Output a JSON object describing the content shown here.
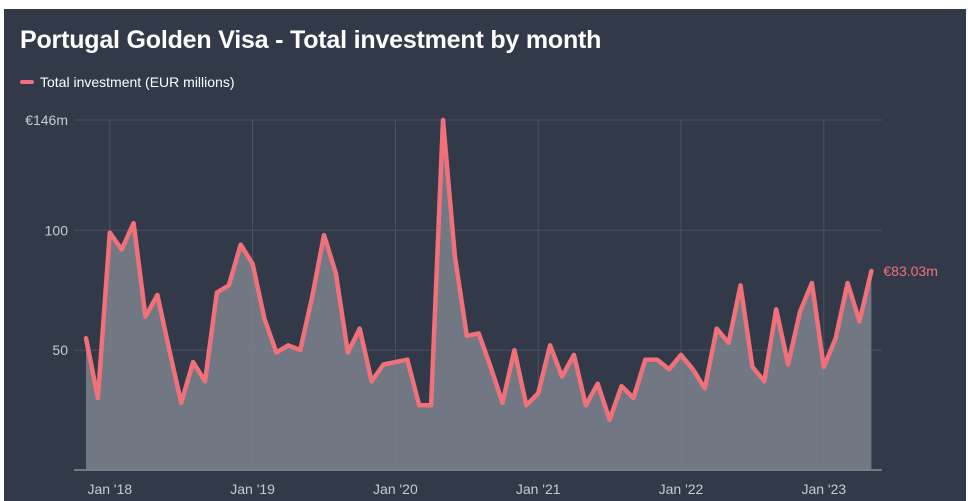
{
  "chart_data": {
    "type": "area",
    "title": "Portugal Golden Visa - Total investment by month",
    "xlabel": "",
    "ylabel": "",
    "ylim": [
      0,
      146
    ],
    "y_ticks": [
      {
        "value": 146,
        "label": "€146m"
      },
      {
        "value": 100,
        "label": "100"
      },
      {
        "value": 50,
        "label": "50"
      }
    ],
    "x_ticks": [
      {
        "index": 2,
        "label": "Jan '18"
      },
      {
        "index": 14,
        "label": "Jan '19"
      },
      {
        "index": 26,
        "label": "Jan '20"
      },
      {
        "index": 38,
        "label": "Jan '21"
      },
      {
        "index": 50,
        "label": "Jan '22"
      },
      {
        "index": 62,
        "label": "Jan '23"
      }
    ],
    "x_start": "2017-11",
    "series": [
      {
        "name": "Total investment (EUR millions)",
        "values": [
          55,
          30,
          99,
          92,
          103,
          64,
          73,
          50,
          28,
          45,
          37,
          74,
          77,
          94,
          86,
          63,
          49,
          52,
          50,
          72,
          98,
          82,
          49,
          59,
          37,
          44,
          45,
          46,
          27,
          27,
          146,
          89,
          56,
          57,
          43,
          28,
          50,
          27,
          32,
          52,
          39,
          48,
          27,
          36,
          21,
          35,
          30,
          46,
          46,
          42,
          48,
          42,
          34,
          59,
          53,
          77,
          43,
          37,
          67,
          44,
          66,
          78,
          43,
          55,
          78,
          62,
          83.03
        ]
      }
    ],
    "end_label": "€83.03m",
    "grid": true,
    "legend_position": "top-left",
    "colors": {
      "background": "#323a4a",
      "line": "#f1717a",
      "area": "#7d838d",
      "grid": "#4a5263",
      "axis_text": "#c6cad2",
      "title": "#ffffff"
    }
  }
}
